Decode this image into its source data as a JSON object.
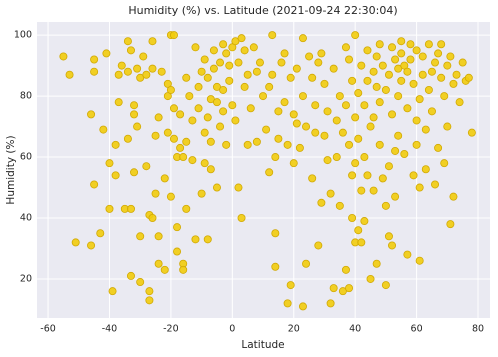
{
  "chart_data": {
    "type": "scatter",
    "title": "Humidity (%) vs. Latitude (2021-09-24 22:30:04)",
    "x_label": "Latitude",
    "y_label": "Humidity (%)",
    "color": "#f2cc0c",
    "edgecolor": "#d1a904",
    "grid": true,
    "xlim": [
      -63.6,
      83.9
    ],
    "ylim": [
      7.2,
      104.3
    ],
    "xticks": [
      -60,
      -40,
      -20,
      0,
      20,
      40,
      60,
      80
    ],
    "yticks": [
      20,
      40,
      60,
      80,
      100
    ],
    "x": [
      -55,
      -53,
      -51,
      -46,
      -46,
      -45,
      -45,
      -45,
      -43,
      -42,
      -41,
      -40,
      -40,
      -39,
      -38,
      -38,
      -37,
      -37,
      -36,
      -35,
      -34,
      -34,
      -34,
      -33,
      -33,
      -33,
      -32,
      -32,
      -32,
      -31,
      -31,
      -30,
      -30,
      -30,
      -29,
      -28,
      -28,
      -27,
      -27,
      -27,
      -26,
      -26,
      -26,
      -25,
      -25,
      -24,
      -24,
      -24,
      -23,
      -22,
      -22,
      -21,
      -21,
      -21,
      -20,
      -20,
      -20,
      -19,
      -19,
      -19,
      -18,
      -18,
      -18,
      -17,
      -17,
      -16,
      -16,
      -16,
      -15,
      -15,
      -15,
      -14,
      -13,
      -13,
      -12,
      -12,
      -11,
      -11,
      -10,
      -10,
      -9,
      -9,
      -9,
      -8,
      -8,
      -8,
      -7,
      -7,
      -7,
      -6,
      -6,
      -5,
      -5,
      -5,
      -4,
      -4,
      -3,
      -3,
      -3,
      -2,
      -2,
      -1,
      -1,
      0,
      0,
      1,
      1,
      2,
      2,
      3,
      3,
      4,
      4,
      5,
      5,
      6,
      7,
      8,
      8,
      9,
      10,
      11,
      12,
      12,
      13,
      13,
      14,
      14,
      14,
      15,
      15,
      16,
      17,
      17,
      18,
      18,
      19,
      19,
      20,
      20,
      21,
      21,
      22,
      23,
      23,
      23,
      24,
      24,
      25,
      26,
      26,
      27,
      27,
      28,
      28,
      29,
      29,
      30,
      30,
      31,
      31,
      32,
      32,
      33,
      33,
      34,
      34,
      35,
      35,
      36,
      36,
      37,
      37,
      37,
      38,
      38,
      38,
      39,
      39,
      39,
      40,
      40,
      40,
      40,
      41,
      41,
      41,
      42,
      42,
      42,
      43,
      43,
      43,
      44,
      44,
      44,
      45,
      45,
      46,
      46,
      46,
      47,
      47,
      47,
      48,
      48,
      48,
      49,
      49,
      50,
      50,
      50,
      51,
      51,
      51,
      52,
      52,
      52,
      53,
      53,
      53,
      54,
      54,
      54,
      55,
      55,
      55,
      56,
      56,
      57,
      57,
      57,
      58,
      58,
      59,
      59,
      60,
      60,
      60,
      61,
      61,
      61,
      62,
      62,
      63,
      63,
      64,
      64,
      65,
      65,
      66,
      66,
      67,
      67,
      68,
      68,
      69,
      69,
      70,
      70,
      71,
      71,
      72,
      72,
      73,
      74,
      75,
      76,
      77,
      78
    ],
    "values": [
      93,
      87,
      32,
      31,
      74,
      51,
      88,
      92,
      35,
      69,
      94,
      58,
      43,
      16,
      54,
      64,
      87,
      78,
      90,
      43,
      88,
      66,
      98,
      43,
      21,
      95,
      74,
      77,
      55,
      70,
      89,
      19,
      34,
      86,
      93,
      57,
      87,
      16,
      13,
      41,
      40,
      98,
      89,
      48,
      67,
      25,
      34,
      73,
      88,
      23,
      53,
      80,
      68,
      84,
      47,
      82,
      100,
      100,
      66,
      76,
      37,
      29,
      60,
      63,
      74,
      60,
      25,
      23,
      43,
      86,
      65,
      80,
      59,
      72,
      96,
      33,
      83,
      76,
      48,
      88,
      92,
      58,
      68,
      33,
      73,
      86,
      65,
      79,
      56,
      95,
      89,
      83,
      50,
      78,
      70,
      91,
      97,
      82,
      75,
      94,
      64,
      90,
      85,
      77,
      96,
      98,
      72,
      50,
      91,
      40,
      99,
      95,
      83,
      64,
      87,
      76,
      96,
      88,
      65,
      91,
      80,
      69,
      55,
      83,
      100,
      87,
      60,
      24,
      35,
      75,
      66,
      91,
      94,
      78,
      12,
      64,
      18,
      86,
      58,
      74,
      71,
      89,
      63,
      99,
      11,
      80,
      25,
      70,
      93,
      53,
      86,
      68,
      77,
      91,
      31,
      94,
      45,
      67,
      84,
      59,
      75,
      48,
      12,
      17,
      89,
      72,
      60,
      80,
      44,
      68,
      16,
      23,
      77,
      96,
      17,
      64,
      92,
      40,
      85,
      54,
      73,
      58,
      100,
      32,
      36,
      81,
      66,
      49,
      90,
      32,
      39,
      77,
      60,
      95,
      85,
      54,
      70,
      20,
      88,
      73,
      49,
      93,
      83,
      25,
      64,
      97,
      78,
      53,
      90,
      82,
      18,
      44,
      87,
      34,
      57,
      96,
      74,
      31,
      92,
      62,
      47,
      89,
      80,
      67,
      94,
      98,
      85,
      61,
      90,
      88,
      76,
      28,
      97,
      92,
      84,
      54,
      72,
      64,
      95,
      26,
      50,
      79,
      87,
      93,
      69,
      56,
      82,
      97,
      88,
      75,
      51,
      91,
      63,
      94,
      86,
      97,
      58,
      80,
      70,
      90,
      38,
      93,
      84,
      47,
      87,
      78,
      91,
      85,
      86,
      68
    ]
  }
}
